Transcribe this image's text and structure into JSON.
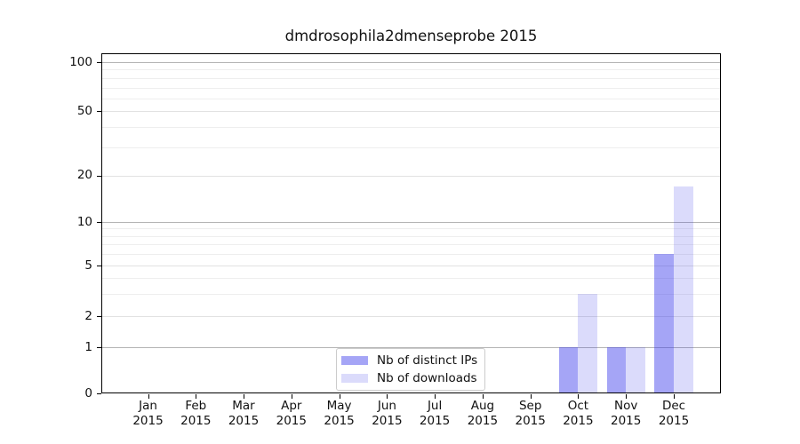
{
  "chart_data": {
    "type": "bar",
    "title": "dmdrosophila2dmenseprobe 2015",
    "year": "2015",
    "categories": [
      "Jan",
      "Feb",
      "Mar",
      "Apr",
      "May",
      "Jun",
      "Jul",
      "Aug",
      "Sep",
      "Oct",
      "Nov",
      "Dec"
    ],
    "series": [
      {
        "name": "Nb of distinct IPs",
        "color_hex": "#3737eb",
        "alpha": 0.45,
        "values": [
          0,
          0,
          0,
          0,
          0,
          0,
          0,
          0,
          0,
          1,
          1,
          6
        ]
      },
      {
        "name": "Nb of downloads",
        "color_hex": "#3737eb",
        "alpha": 0.18,
        "values": [
          0,
          0,
          0,
          0,
          0,
          0,
          0,
          0,
          0,
          3,
          1,
          17
        ]
      }
    ],
    "yticks": [
      0,
      1,
      2,
      5,
      10,
      20,
      50,
      100
    ],
    "yscale": "symlog",
    "ylim": [
      0,
      115
    ],
    "grid": {
      "strong": [
        1,
        10,
        100
      ],
      "medium": [
        2,
        5,
        20,
        50
      ],
      "minor": [
        3,
        4,
        6,
        7,
        8,
        9,
        30,
        40,
        60,
        70,
        80,
        90
      ]
    },
    "legend_position": "lower-center-inside",
    "legend_labels": [
      "Nb of distinct IPs",
      "Nb of downloads"
    ]
  }
}
